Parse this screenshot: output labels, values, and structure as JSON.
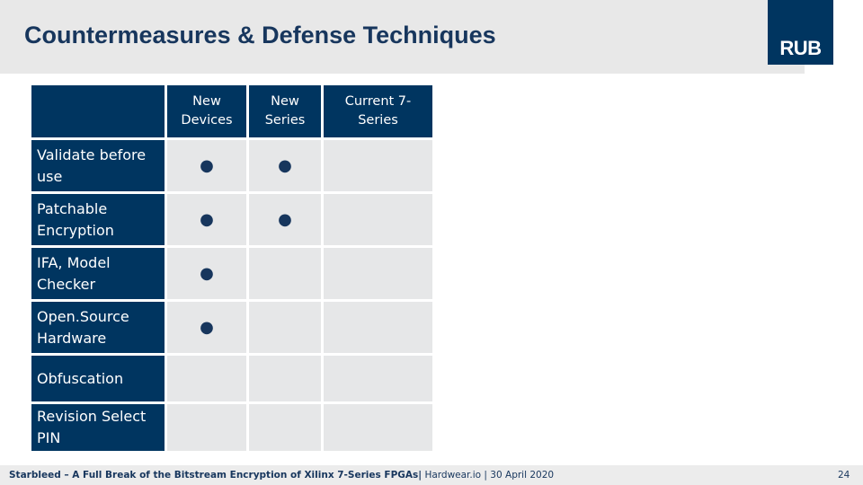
{
  "header": {
    "title": "Countermeasures & Defense Techniques",
    "logo": "RUB"
  },
  "table": {
    "columns": [
      "New Devices",
      "New Series",
      "Current 7-Series"
    ],
    "rows": [
      {
        "label": "Validate before use",
        "cells": [
          "●",
          "●",
          null
        ]
      },
      {
        "label": "Patchable Encryption",
        "cells": [
          "●",
          "●",
          null
        ]
      },
      {
        "label": "IFA, Model Checker",
        "cells": [
          "●",
          null,
          null
        ]
      },
      {
        "label": "Open.Source Hardware",
        "cells": [
          "●",
          null,
          null
        ]
      },
      {
        "label": "Obfuscation",
        "cells": [
          null,
          null,
          null
        ]
      },
      {
        "label": "Revision Select PIN",
        "cells": [
          null,
          null,
          null
        ]
      }
    ]
  },
  "footer": {
    "title": "Starbleed – A Full Break of the Bitstream Encryption of Xilinx 7-Series FPGAs|",
    "details": "Hardwear.io | 30 April 2020",
    "page": "24"
  }
}
